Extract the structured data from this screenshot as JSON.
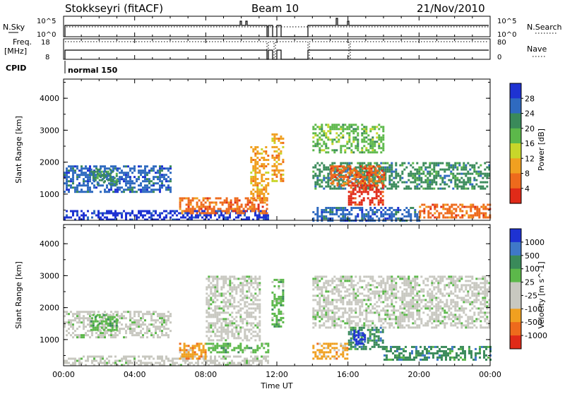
{
  "header": {
    "station": "Stokkseyri (fitACF)",
    "beam": "Beam 10",
    "date": "21/Nov/2010"
  },
  "strips": {
    "nsky_label": "N.Sky",
    "nsky_ticks": [
      "10^5",
      "10^0"
    ],
    "nsearch_label": "N.Search",
    "nsearch_ticks": [
      "10^5",
      "10^0"
    ],
    "freq_label": "Freq.",
    "freq_unit": "[MHz]",
    "freq_ticks": [
      "18",
      "8"
    ],
    "nave_label": "Nave",
    "nave_ticks": [
      "80",
      "0"
    ],
    "cpid_label": "CPID",
    "cpid_value": "normal 150"
  },
  "colors": {
    "power": [
      "#1e32d2",
      "#2f6ac0",
      "#3a8a5a",
      "#5cb84a",
      "#c8d62a",
      "#f0a020",
      "#ee6a1c",
      "#e02a18"
    ],
    "velocity": [
      "#1e32d2",
      "#3f78c8",
      "#3a8a5a",
      "#5cb84a",
      "#c8c8c0",
      "#c8c8c0",
      "#f0a020",
      "#ee6a1c",
      "#e02a18"
    ]
  },
  "chart_data": [
    {
      "type": "heatmap",
      "name": "power",
      "ylabel": "Slant Range [km]",
      "ylim": [
        180,
        4600
      ],
      "yticks": [
        "1000",
        "2000",
        "3000",
        "4000"
      ],
      "xlim": [
        0,
        24
      ],
      "colorbar_label": "Power [dB]",
      "colorbar_ticks": [
        "4",
        "8",
        "12",
        "16",
        "20",
        "24",
        "28"
      ],
      "regions": [
        {
          "t0": 0,
          "t1": 6,
          "r0": 1100,
          "r1": 1900,
          "level": 1
        },
        {
          "t0": 0,
          "t1": 11.5,
          "r0": 200,
          "r1": 500,
          "level": 0
        },
        {
          "t0": 1.5,
          "t1": 3,
          "r0": 1300,
          "r1": 1800,
          "level": 2
        },
        {
          "t0": 6.5,
          "t1": 11.5,
          "r0": 400,
          "r1": 900,
          "level": 6
        },
        {
          "t0": 10.5,
          "t1": 11.5,
          "r0": 800,
          "r1": 2500,
          "level": 5
        },
        {
          "t0": 11.7,
          "t1": 12.3,
          "r0": 1400,
          "r1": 2900,
          "level": 5
        },
        {
          "t0": 14,
          "t1": 24,
          "r0": 1200,
          "r1": 2000,
          "level": 2
        },
        {
          "t0": 15,
          "t1": 18,
          "r0": 1300,
          "r1": 1900,
          "level": 6
        },
        {
          "t0": 16,
          "t1": 18,
          "r0": 700,
          "r1": 1300,
          "level": 7
        },
        {
          "t0": 14,
          "t1": 20,
          "r0": 200,
          "r1": 600,
          "level": 1
        },
        {
          "t0": 20,
          "t1": 24,
          "r0": 300,
          "r1": 700,
          "level": 6
        },
        {
          "t0": 14,
          "t1": 18,
          "r0": 2300,
          "r1": 3200,
          "level": 3
        }
      ]
    },
    {
      "type": "heatmap",
      "name": "velocity",
      "ylabel": "Slant Range [km]",
      "ylim": [
        180,
        4600
      ],
      "yticks": [
        "1000",
        "2000",
        "3000",
        "4000"
      ],
      "xlim": [
        0,
        24
      ],
      "colorbar_label": "Velocity [m s^-1]",
      "colorbar_ticks": [
        "1000",
        "500",
        "100",
        "25",
        "-25",
        "-100",
        "-500",
        "-1000"
      ],
      "regions": [
        {
          "t0": 0,
          "t1": 6,
          "r0": 1100,
          "r1": 1900,
          "level": 4
        },
        {
          "t0": 0,
          "t1": 11.5,
          "r0": 200,
          "r1": 500,
          "level": 4
        },
        {
          "t0": 1.5,
          "t1": 3,
          "r0": 1300,
          "r1": 1800,
          "level": 3
        },
        {
          "t0": 6.5,
          "t1": 8,
          "r0": 400,
          "r1": 900,
          "level": 6
        },
        {
          "t0": 8,
          "t1": 11.5,
          "r0": 600,
          "r1": 900,
          "level": 3
        },
        {
          "t0": 8,
          "t1": 11,
          "r0": 1000,
          "r1": 3000,
          "level": 4
        },
        {
          "t0": 11.7,
          "t1": 12.3,
          "r0": 1400,
          "r1": 2900,
          "level": 3
        },
        {
          "t0": 14,
          "t1": 24,
          "r0": 1400,
          "r1": 3000,
          "level": 4
        },
        {
          "t0": 16,
          "t1": 18,
          "r0": 700,
          "r1": 1400,
          "level": 2
        },
        {
          "t0": 16.3,
          "t1": 17,
          "r0": 900,
          "r1": 1300,
          "level": 0
        },
        {
          "t0": 18,
          "t1": 24,
          "r0": 400,
          "r1": 800,
          "level": 2
        },
        {
          "t0": 14,
          "t1": 16,
          "r0": 400,
          "r1": 900,
          "level": 6
        }
      ]
    }
  ],
  "xaxis": {
    "ticks": [
      "00:00",
      "04:00",
      "08:00",
      "12:00",
      "16:00",
      "20:00",
      "00:00"
    ],
    "label": "Time UT"
  }
}
